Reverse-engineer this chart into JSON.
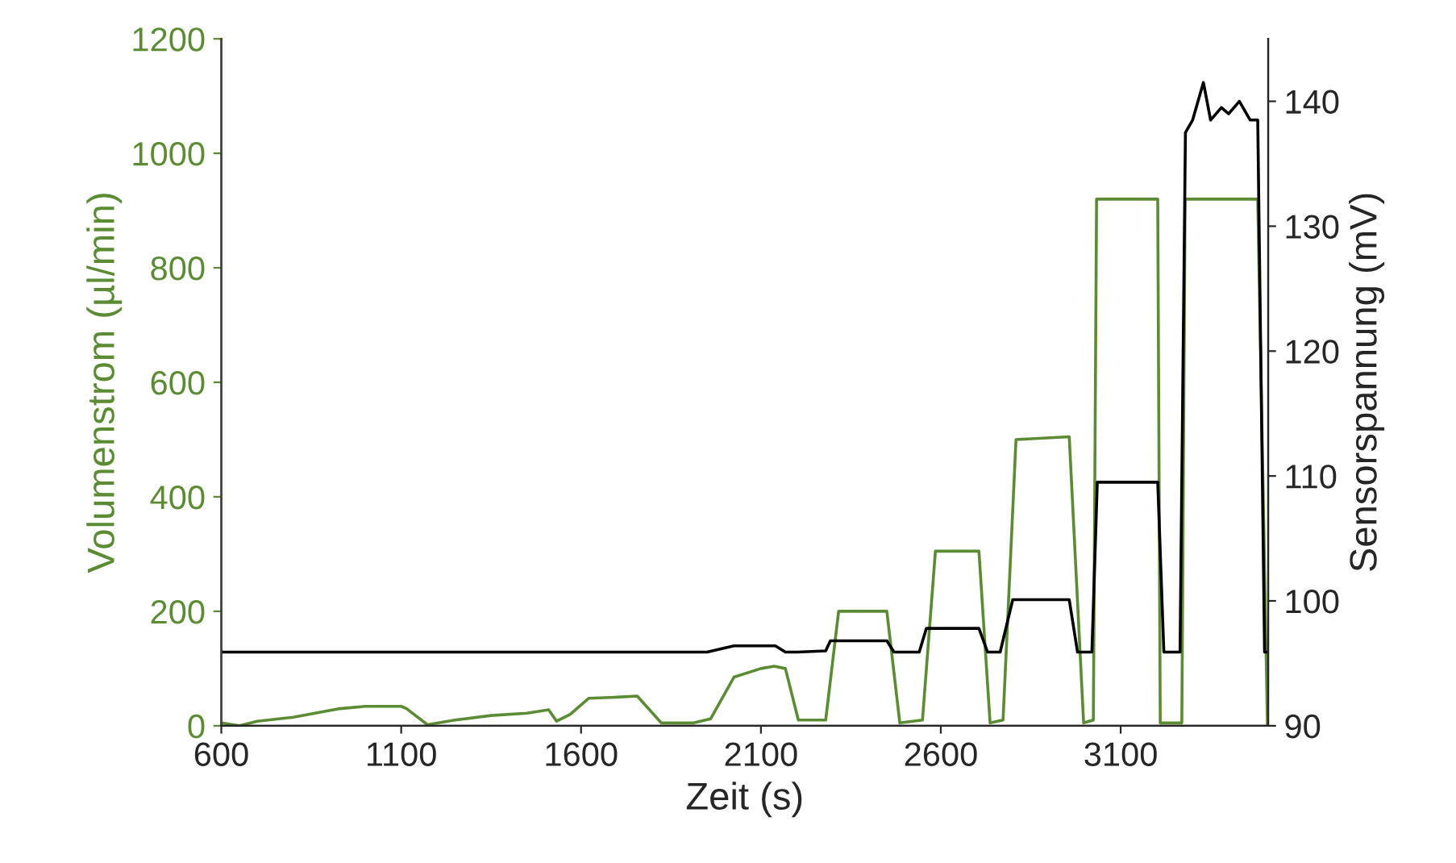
{
  "chart_data": {
    "type": "line",
    "xlabel": "Zeit (s)",
    "ylabel": "Volumenstrom (µl/min)",
    "y2label": "Sensorspannung (mV)",
    "xlim": [
      600,
      3510
    ],
    "xticks": [
      600,
      1100,
      1600,
      2100,
      2600,
      3100
    ],
    "ylim": [
      0,
      1200
    ],
    "yticks": [
      0,
      200,
      400,
      600,
      800,
      1000,
      1200
    ],
    "y2lim": [
      90,
      145
    ],
    "y2ticks": [
      90,
      100,
      110,
      120,
      130,
      140
    ],
    "grid": false,
    "legend": false,
    "series": [
      {
        "color": "#5b8c33",
        "x": [
          600,
          650,
          700,
          800,
          930,
          1000,
          1100,
          1115,
          1173,
          1250,
          1350,
          1450,
          1510,
          1532,
          1570,
          1621,
          1700,
          1756,
          1823,
          1913,
          1960,
          2025,
          2100,
          2137,
          2168,
          2204,
          2280,
          2316,
          2450,
          2486,
          2549,
          2585,
          2706,
          2737,
          2773,
          2809,
          2957,
          2997,
          3024,
          3033,
          3203,
          3210,
          3270,
          3279,
          3481,
          3508
        ],
        "values": [
          5,
          0,
          8,
          15,
          30,
          34,
          34,
          30,
          2,
          10,
          18,
          22,
          28,
          8,
          20,
          48,
          50,
          52,
          5,
          5,
          12,
          85,
          100,
          104,
          100,
          10,
          10,
          200,
          200,
          5,
          10,
          305,
          305,
          5,
          10,
          500,
          505,
          5,
          10,
          920,
          920,
          5,
          5,
          920,
          920,
          0
        ]
      },
      {
        "color": "#000000",
        "axis": "y2",
        "x": [
          600,
          1000,
          1500,
          1950,
          2025,
          2140,
          2168,
          2200,
          2280,
          2293,
          2450,
          2470,
          2540,
          2560,
          2706,
          2730,
          2765,
          2800,
          2957,
          2980,
          3020,
          3035,
          3203,
          3220,
          3265,
          3280,
          3300,
          3310,
          3330,
          3350,
          3380,
          3400,
          3430,
          3460,
          3481,
          3500,
          3510
        ],
        "values": [
          95.9,
          95.9,
          95.9,
          95.9,
          96.4,
          96.4,
          95.9,
          95.9,
          96.0,
          96.8,
          96.8,
          95.9,
          95.9,
          97.8,
          97.8,
          95.9,
          95.9,
          100.1,
          100.1,
          95.9,
          95.9,
          109.5,
          109.5,
          95.9,
          95.9,
          137.5,
          138.5,
          139.5,
          141.5,
          138.5,
          139.5,
          139.0,
          140.0,
          138.5,
          138.5,
          95.9,
          95.9
        ]
      }
    ]
  }
}
